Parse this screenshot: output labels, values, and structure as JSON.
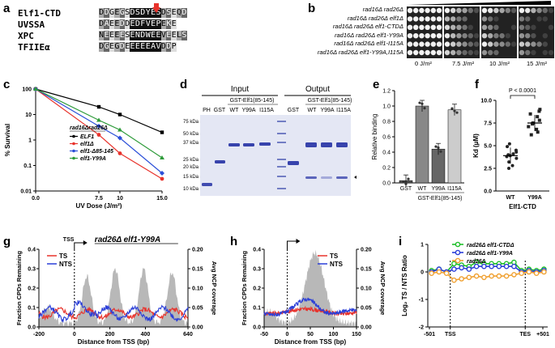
{
  "panels": {
    "a": "a",
    "b": "b",
    "c": "c",
    "d": "d",
    "e": "e",
    "f": "f",
    "g": "g",
    "h": "h",
    "i": "i"
  },
  "panel_a": {
    "rows": [
      {
        "name": "Elf1-CTD",
        "seq": "DDGEGSDSDYESDSEQD"
      },
      {
        "name": "UVSSA",
        "seq": "DAEEDDEDFVEPEKE"
      },
      {
        "name": "XPC",
        "seq": "NEEEESENDWEEVEELS"
      },
      {
        "name": "TFIIEα",
        "seq": "DGEGDEEEEEAVDDP"
      }
    ]
  },
  "panel_b": {
    "strains": [
      "rad16Δ rad26Δ",
      "rad16Δ rad26Δ elf1Δ",
      "rad16Δ rad26Δ elf1-CTDΔ",
      "rad16Δ rad26Δ elf1-Y99A",
      "rad16Δ rad26Δ elf1-I115A",
      "rad16Δ rad26Δ elf1-Y99A,I115A"
    ],
    "doses": [
      "0 J/m²",
      "7.5 J/m²",
      "10 J/m²",
      "15 J/m²"
    ]
  },
  "panel_c": {
    "ylabel": "% Survival",
    "xlabel": "UV Dose (J/m²)",
    "legend_title": "rad16Δrad26Δ",
    "yticks": [
      "100",
      "10",
      "1",
      "0.1",
      "0.01"
    ],
    "xticks": [
      "0.0",
      "7.5",
      "10",
      "15.0"
    ]
  },
  "panel_d": {
    "input_label": "Input",
    "output_label": "Output",
    "lane_PH": "PH",
    "lane_GST": "GST",
    "gst_elf1": "GST-Elf1(85-145)",
    "wt": "WT",
    "y99a": "Y99A",
    "i115a": "I115A",
    "markers": [
      "75 kDa",
      "50 kDa",
      "37 kDa",
      "25 kDa",
      "20 kDa",
      "15 kDa",
      "10 kDa"
    ]
  },
  "panel_e": {
    "ylabel": "Relative binding",
    "xlabel": "GST-Elf1(85-145)",
    "yticks": [
      "0.0",
      "0.2",
      "0.4",
      "0.6",
      "0.8",
      "1.0",
      "1.2"
    ]
  },
  "panel_f": {
    "ylabel": "Kd (μM)",
    "xlabel": "Elf1-CTD",
    "pvalue": "P < 0.0001",
    "yticks": [
      "0.0",
      "2.5",
      "5.0",
      "7.5",
      "10.0"
    ]
  },
  "panel_g": {
    "title": "rad26Δ elf1-Y99A",
    "tss": "TSS",
    "ylabel": "Fraction CPDs Remaining",
    "y2label": "Avg NCP coverage",
    "xlabel": "Distance from TSS (bp)",
    "xticks": [
      "-200",
      "0",
      "200",
      "400",
      "640"
    ],
    "yticks": [
      "0.0",
      "0.1",
      "0.2",
      "0.3",
      "0.4"
    ],
    "y2ticks": [
      "0.00",
      "0.05",
      "0.10",
      "0.15",
      "0.20"
    ],
    "ts": "TS",
    "nts": "NTS"
  },
  "panel_h": {
    "ylabel": "Fraction CPDs Remaining",
    "y2label": "Avg NCP coverage",
    "xlabel": "Distance from TSS (bp)",
    "xticks": [
      "-50",
      "0",
      "50",
      "100",
      "150"
    ],
    "yticks": [
      "0.0",
      "0.1",
      "0.2",
      "0.3",
      "0.4"
    ],
    "y2ticks": [
      "0.00",
      "0.05",
      "0.10",
      "0.15",
      "0.20"
    ],
    "ts": "TS",
    "nts": "NTS"
  },
  "panel_i": {
    "ylabel": "Log₂ TS / NTS Ratio",
    "xticks": [
      "-501",
      "TSS",
      "TES",
      "+501"
    ],
    "yticks": [
      "-2",
      "-1",
      "0",
      "1"
    ],
    "legend": [
      "rad26Δ elf1-CTDΔ",
      "rad26Δ elf1-Y99A",
      "rad26Δ"
    ]
  },
  "chart_data": [
    {
      "type": "line",
      "panel": "c",
      "title": "",
      "xlabel": "UV Dose (J/m²)",
      "ylabel": "% Survival",
      "yscale": "log",
      "ylim": [
        0.01,
        100
      ],
      "xlim": [
        0,
        15
      ],
      "x": [
        0,
        7.5,
        10,
        15
      ],
      "series": [
        {
          "name": "ELF1",
          "color": "#000000",
          "values": [
            100,
            20,
            10,
            2
          ]
        },
        {
          "name": "elf1Δ",
          "color": "#e8322b",
          "values": [
            100,
            1.6,
            0.3,
            0.03
          ]
        },
        {
          "name": "elf1-Δ85-145",
          "color": "#2b4fd8",
          "values": [
            100,
            3.5,
            1.2,
            0.05
          ]
        },
        {
          "name": "elf1-Y99A",
          "color": "#2e9b3a",
          "values": [
            100,
            6,
            2.5,
            0.2
          ]
        }
      ]
    },
    {
      "type": "bar",
      "panel": "e",
      "title": "",
      "ylabel": "Relative binding",
      "ylim": [
        0,
        1.2
      ],
      "categories": [
        "GST",
        "WT",
        "Y99A",
        "I115A"
      ],
      "values": [
        0.03,
        1.0,
        0.44,
        0.95
      ],
      "colors": [
        "#555555",
        "#888888",
        "#666666",
        "#cccccc"
      ]
    },
    {
      "type": "scatter",
      "panel": "f",
      "title": "",
      "ylabel": "Kd (μM)",
      "ylim": [
        0,
        10
      ],
      "categories": [
        "WT",
        "Y99A"
      ],
      "series": [
        {
          "name": "WT",
          "values": [
            4.0,
            3.8,
            4.5,
            3.2,
            2.8,
            4.9,
            3.6,
            5.2,
            2.5,
            3.9,
            4.3,
            4.1
          ],
          "mean": 3.9
        },
        {
          "name": "Y99A",
          "values": [
            7.5,
            6.8,
            8.2,
            7.1,
            9.0,
            6.5,
            7.8,
            8.5,
            6.2,
            7.4,
            8.8
          ],
          "mean": 7.5
        }
      ]
    },
    {
      "type": "line",
      "panel": "i",
      "title": "",
      "ylabel": "Log₂ TS / NTS Ratio",
      "ylim": [
        -2,
        1
      ],
      "x": [
        1,
        2,
        3,
        4,
        5,
        6,
        7,
        8,
        9,
        10,
        11,
        12,
        13,
        14,
        15,
        16
      ],
      "series": [
        {
          "name": "rad26Δ elf1-CTDΔ",
          "color": "#1fbf2a",
          "values": [
            0.05,
            0.1,
            0.0,
            0.3,
            0.25,
            0.2,
            0.35,
            0.3,
            0.3,
            0.3,
            0.3,
            0.35,
            0.05,
            0.1,
            0.05,
            0.1
          ]
        },
        {
          "name": "rad26Δ elf1-Y99A",
          "color": "#2b3fd8",
          "values": [
            0.0,
            0.1,
            0.0,
            0.1,
            0.15,
            0.1,
            0.2,
            0.2,
            0.2,
            0.2,
            0.2,
            0.2,
            0.0,
            0.05,
            0.0,
            0.05
          ]
        },
        {
          "name": "rad26Δ",
          "color": "#f0a030",
          "values": [
            -0.05,
            0.0,
            -0.05,
            -0.3,
            -0.25,
            -0.2,
            -0.15,
            -0.2,
            -0.15,
            -0.15,
            -0.15,
            -0.1,
            -0.05,
            0.0,
            -0.05,
            0.0
          ]
        }
      ]
    }
  ]
}
